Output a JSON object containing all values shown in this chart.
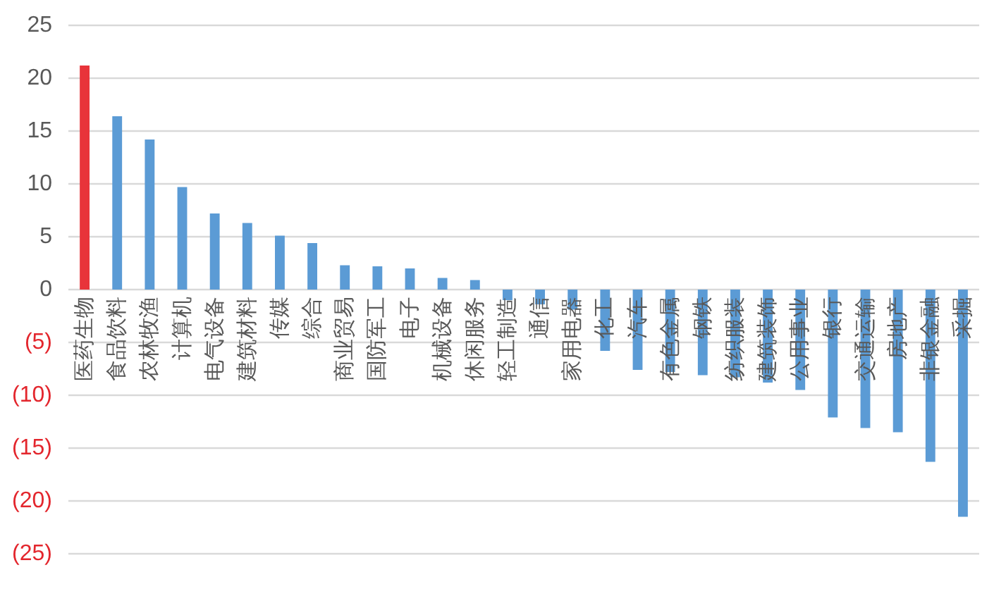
{
  "chart_data": {
    "type": "bar",
    "categories": [
      "医药生物",
      "食品饮料",
      "农林牧渔",
      "计算机",
      "电气设备",
      "建筑材料",
      "传媒",
      "综合",
      "商业贸易",
      "国防军工",
      "电子",
      "机械设备",
      "休闲服务",
      "轻工制造",
      "通信",
      "家用电器",
      "化工",
      "汽车",
      "有色金属",
      "钢铁",
      "纺织服装",
      "建筑装饰",
      "公用事业",
      "银行",
      "交通运输",
      "房地产",
      "非银金融",
      "采掘"
    ],
    "values": [
      21.2,
      16.4,
      14.2,
      9.7,
      7.2,
      6.3,
      5.1,
      4.4,
      2.3,
      2.2,
      2.0,
      1.1,
      0.9,
      -1.0,
      -1.4,
      -1.9,
      -5.8,
      -7.6,
      -7.8,
      -8.1,
      -8.3,
      -8.8,
      -9.5,
      -12.1,
      -13.1,
      -13.5,
      -16.3,
      -21.5
    ],
    "colors": [
      "#e8343a",
      "#5b9bd5",
      "#5b9bd5",
      "#5b9bd5",
      "#5b9bd5",
      "#5b9bd5",
      "#5b9bd5",
      "#5b9bd5",
      "#5b9bd5",
      "#5b9bd5",
      "#5b9bd5",
      "#5b9bd5",
      "#5b9bd5",
      "#5b9bd5",
      "#5b9bd5",
      "#5b9bd5",
      "#5b9bd5",
      "#5b9bd5",
      "#5b9bd5",
      "#5b9bd5",
      "#5b9bd5",
      "#5b9bd5",
      "#5b9bd5",
      "#5b9bd5",
      "#5b9bd5",
      "#5b9bd5",
      "#5b9bd5",
      "#5b9bd5"
    ],
    "ylim": [
      -25,
      25
    ],
    "yticks": [
      {
        "value": -25,
        "label": "(25)"
      },
      {
        "value": -20,
        "label": "(20)"
      },
      {
        "value": -15,
        "label": "(15)"
      },
      {
        "value": -10,
        "label": "(10)"
      },
      {
        "value": -5,
        "label": "(5)"
      },
      0,
      5,
      10,
      15,
      20,
      25
    ],
    "grid": "y"
  }
}
